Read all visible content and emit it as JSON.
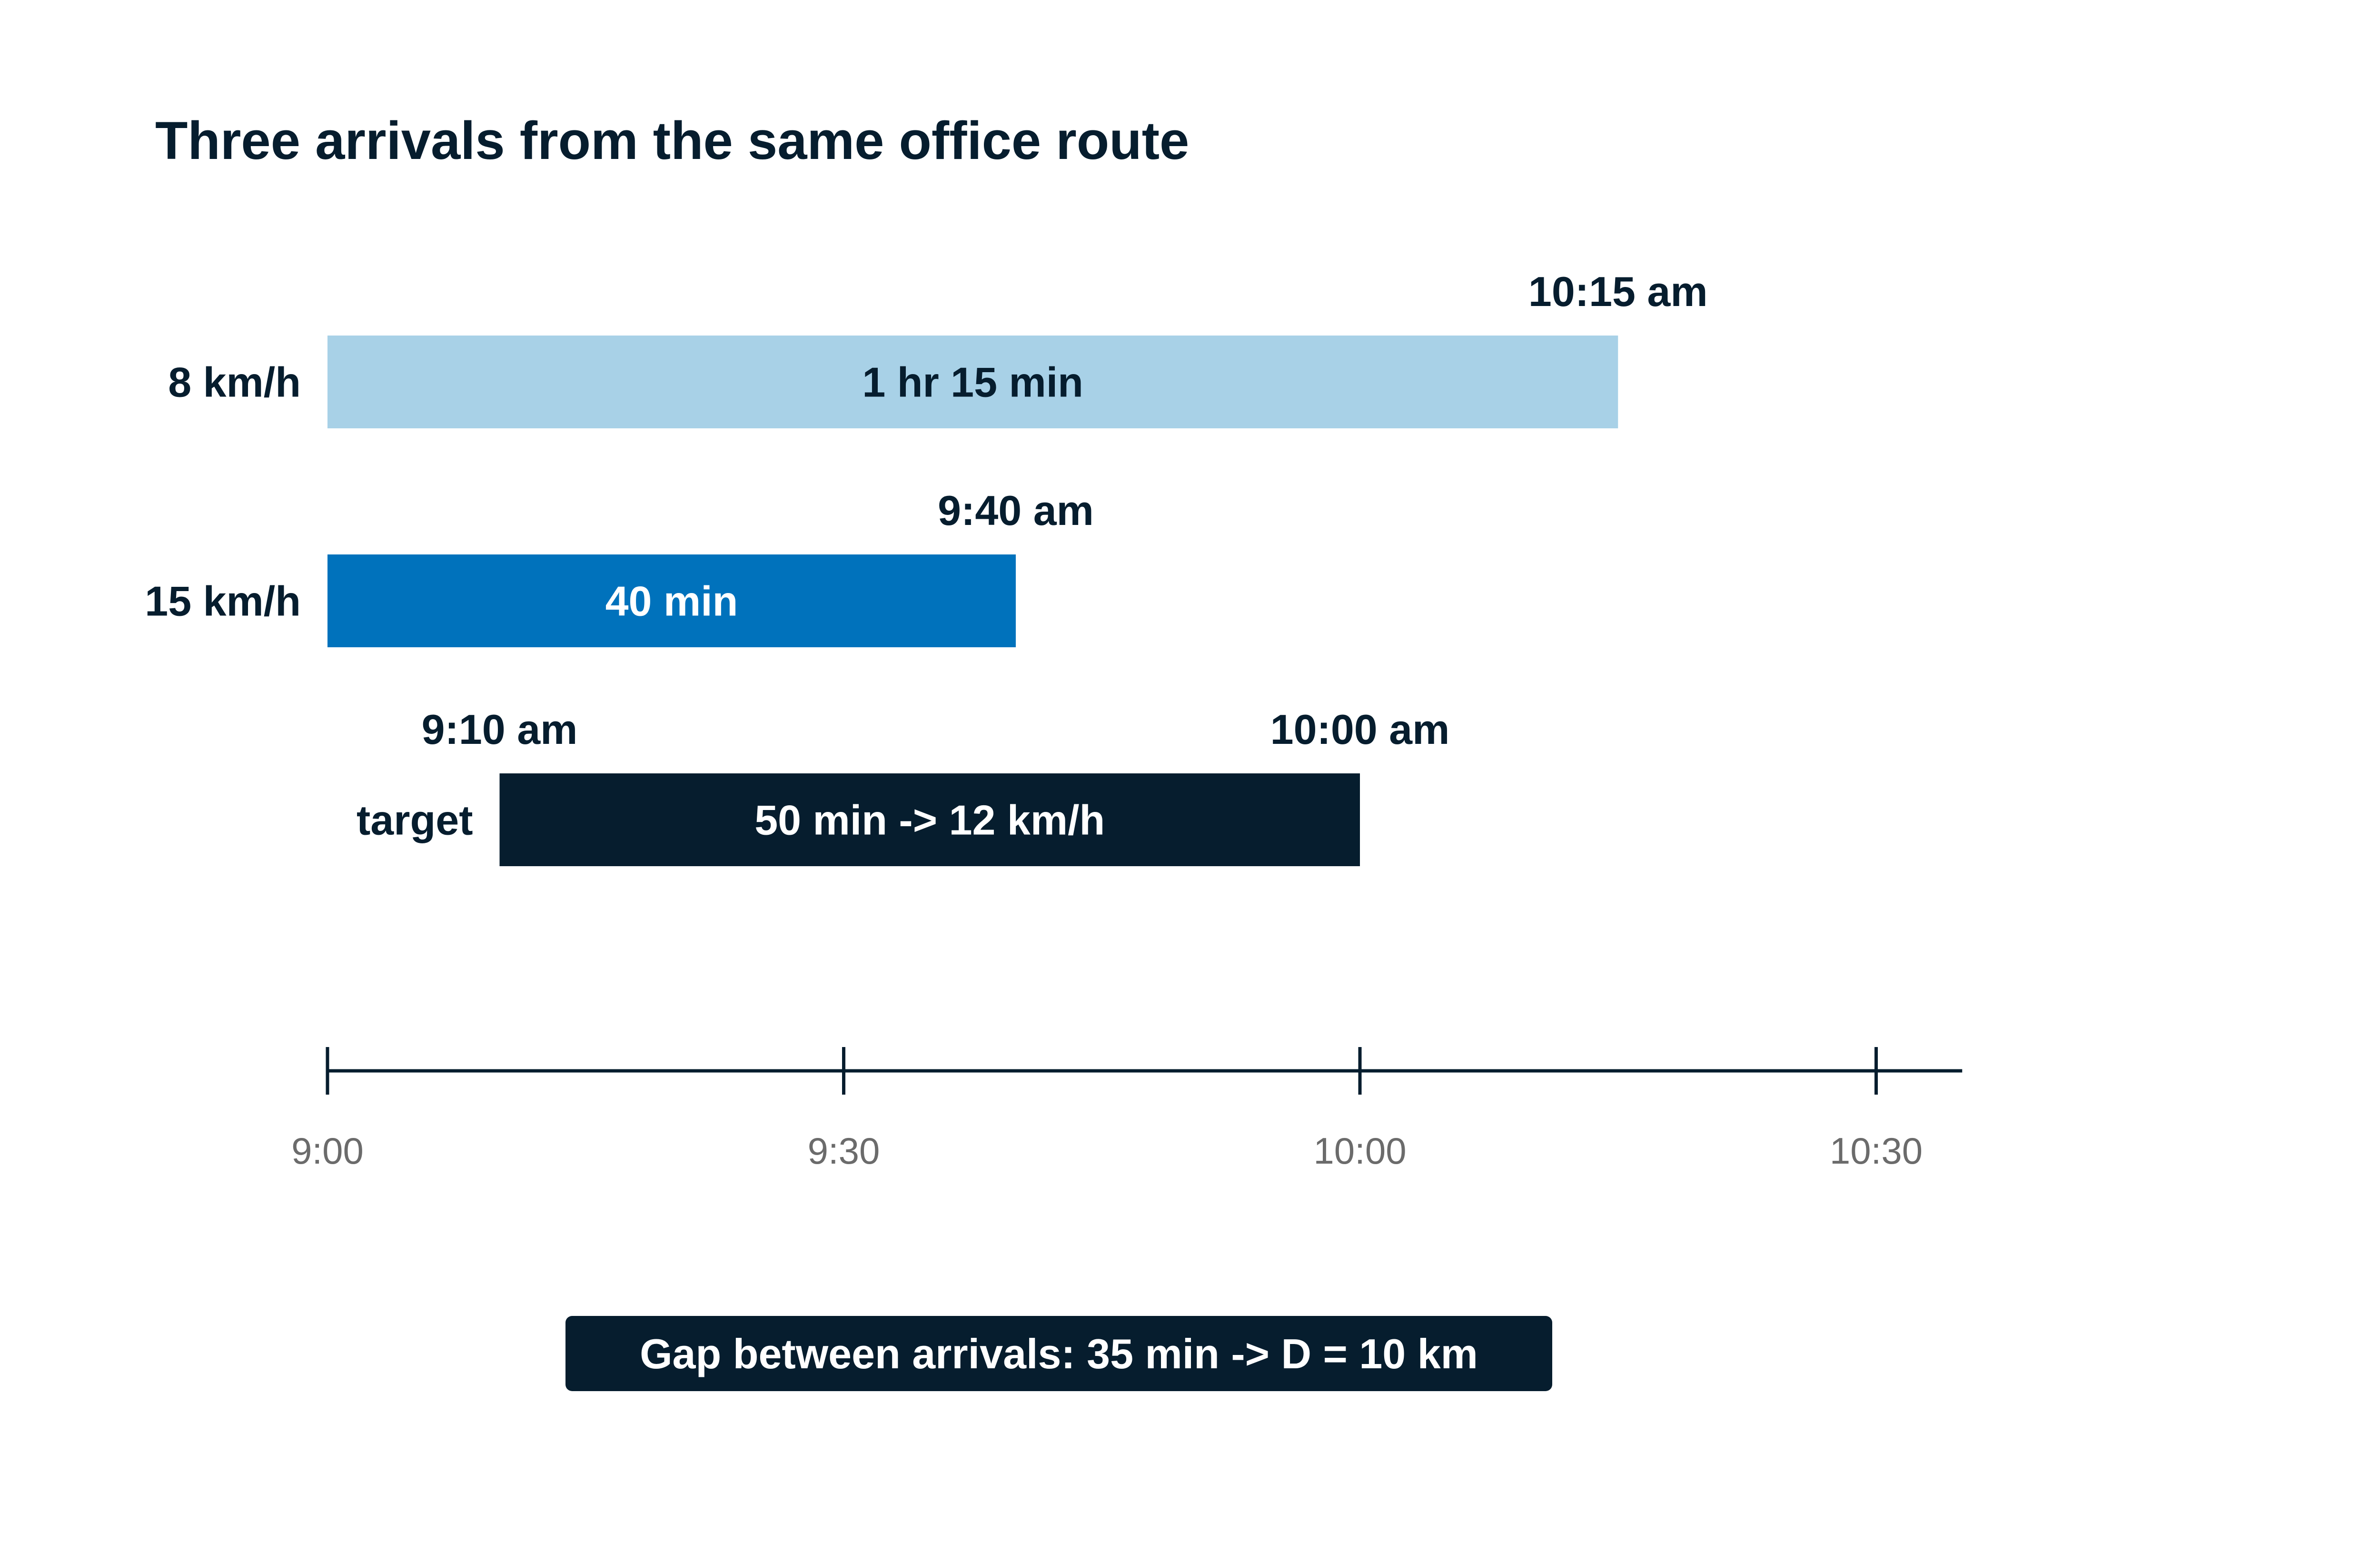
{
  "chart_data": {
    "type": "bar",
    "orientation": "horizontal",
    "title": "Three arrivals from the same office route",
    "x_axis": {
      "ticks": [
        "9:00",
        "9:30",
        "10:00",
        "10:30"
      ],
      "tick_values_min": [
        0,
        30,
        60,
        90
      ],
      "xlim_min": [
        0,
        95
      ],
      "xlabel": ""
    },
    "categories": [
      "8 km/h",
      "15 km/h",
      "target"
    ],
    "bars": [
      {
        "label": "8 km/h",
        "start_min": 0,
        "end_min": 75,
        "inner_label": "1 hr 15 min",
        "end_label": "10:15 am",
        "color": "#a8d1e7",
        "text_color": "#061d2e"
      },
      {
        "label": "15 km/h",
        "start_min": 0,
        "end_min": 40,
        "inner_label": "40 min",
        "end_label": "9:40 am",
        "color": "#0072bc",
        "text_color": "#ffffff"
      },
      {
        "label": "target",
        "start_min": 10,
        "end_min": 60,
        "inner_label": "50 min  ->  12 km/h",
        "start_label": "9:10 am",
        "end_label": "10:00 am",
        "color": "#061d2e",
        "text_color": "#ffffff"
      }
    ],
    "annotation": "Gap between arrivals: 35 min  ->  D = 10 km",
    "grid": false,
    "legend": "none"
  },
  "colors": {
    "axis": "#061d2e",
    "tick_text": "#6b6b6b",
    "label_text": "#061d2e",
    "annotation_bg": "#061d2e",
    "annotation_text": "#ffffff"
  }
}
